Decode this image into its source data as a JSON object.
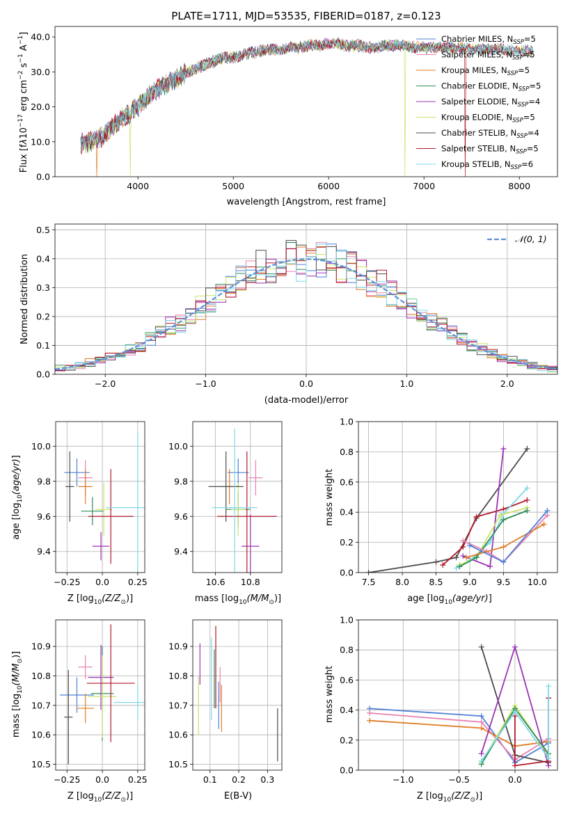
{
  "colors": {
    "Chabrier MILES": "#4f7fd6",
    "Salpeter MILES": "#e880b0",
    "Kroupa MILES": "#e07b23",
    "Chabrier ELODIE": "#2e8b57",
    "Salpeter ELODIE": "#9b32b4",
    "Kroupa ELODIE": "#c9e36a",
    "Chabrier STELIB": "#4a4a4a",
    "Salpeter STELIB": "#b2182b",
    "Kroupa STELIB": "#7fd8e8",
    "gauss": "#5b8fd9"
  },
  "chart_data": [
    {
      "type": "line",
      "title": "PLATE=1711, MJD=53535, FIBERID=0187, z=0.123",
      "xlabel": "wavelength [Angstrom, rest frame]",
      "ylabel": "Flux [f",
      "xlim": [
        3130,
        8400
      ],
      "ylim": [
        0,
        43
      ],
      "xticks": [
        4000,
        5000,
        6000,
        7000,
        8000
      ],
      "yticks": [
        0,
        10,
        20,
        30,
        40
      ],
      "legend_position": "upper right",
      "continuum": {
        "x": [
          3400,
          3500,
          3600,
          3700,
          3800,
          3900,
          4000,
          4100,
          4200,
          4300,
          4400,
          4500,
          4600,
          4700,
          4800,
          4900,
          5000,
          5100,
          5200,
          5300,
          5400,
          5500,
          5600,
          5700,
          5800,
          5900,
          6000,
          6100,
          6200,
          6300,
          6400,
          6500,
          6600,
          6700,
          6800,
          6900,
          7000,
          7100,
          7200,
          7300,
          7400,
          7500,
          7600,
          7700,
          7800,
          7900,
          8000,
          8100,
          8150
        ],
        "y": [
          9.5,
          10,
          11,
          13.5,
          16,
          18,
          20,
          22.5,
          25,
          26.5,
          28,
          29.5,
          31,
          32,
          33,
          34,
          34,
          35,
          35.5,
          36,
          36.5,
          36.5,
          37,
          37,
          37.5,
          37.5,
          38,
          38,
          37.5,
          37.5,
          37,
          37,
          37.5,
          37.5,
          37.5,
          37,
          37,
          37,
          37,
          37,
          37,
          36.5,
          36.5,
          36.5,
          36.5,
          36,
          36,
          36,
          36
        ]
      },
      "series": [
        {
          "name": "Chabrier MILES, N",
          "ssp": "SSP",
          "count": "=5"
        },
        {
          "name": "Salpeter MILES, N",
          "ssp": "SSP",
          "count": "=5"
        },
        {
          "name": "Kroupa MILES, N",
          "ssp": "SSP",
          "count": "=5"
        },
        {
          "name": "Chabrier ELODIE, N",
          "ssp": "SSP",
          "count": "=5"
        },
        {
          "name": "Salpeter ELODIE, N",
          "ssp": "SSP",
          "count": "=4"
        },
        {
          "name": "Kroupa ELODIE, N",
          "ssp": "SSP",
          "count": "=5"
        },
        {
          "name": "Chabrier STELIB, N",
          "ssp": "SSP",
          "count": "=4"
        },
        {
          "name": "Salpeter STELIB, N",
          "ssp": "SSP",
          "count": "=5"
        },
        {
          "name": "Kroupa STELIB, N",
          "ssp": "SSP",
          "count": "=6"
        }
      ],
      "dips": [
        {
          "series": "Kroupa MILES",
          "x": 3570,
          "y": 0
        },
        {
          "series": "Kroupa ELODIE",
          "x": 3920,
          "y": 0
        },
        {
          "series": "Kroupa ELODIE",
          "x": 6800,
          "y": 0
        },
        {
          "series": "Kroupa MILES",
          "x": 7430,
          "y": 0
        },
        {
          "series": "Salpeter STELIB",
          "x": 7435,
          "y": 0
        }
      ]
    },
    {
      "type": "histogram",
      "xlabel": "(data-model)/error",
      "ylabel": "Normed distribution",
      "xlim": [
        -2.5,
        2.5
      ],
      "ylim": [
        0,
        0.52
      ],
      "xticks": [
        -2,
        -1,
        0,
        1,
        2
      ],
      "yticks": [
        0.0,
        0.1,
        0.2,
        0.3,
        0.4,
        0.5
      ],
      "bins": 50,
      "gauss_label": "𝒩(0, 1)",
      "legend_position": "upper right"
    },
    {
      "type": "errorbar",
      "xlabel": "Z [log",
      "ylabel": "age  [log",
      "xlim": [
        -0.33,
        0.3
      ],
      "ylim": [
        9.28,
        10.14
      ],
      "xticks": [
        -0.25,
        0.0,
        0.25
      ],
      "yticks": [
        9.4,
        9.6,
        9.8,
        10.0
      ],
      "points": [
        {
          "series": "Chabrier MILES",
          "x": -0.18,
          "xerr": 0.09,
          "y": 9.85,
          "yerr": 0.08
        },
        {
          "series": "Salpeter MILES",
          "x": -0.12,
          "xerr": 0.05,
          "y": 9.82,
          "yerr": 0.1
        },
        {
          "series": "Kroupa MILES",
          "x": -0.12,
          "xerr": 0.05,
          "y": 9.77,
          "yerr": 0.1
        },
        {
          "series": "Chabrier ELODIE",
          "x": -0.07,
          "xerr": 0.08,
          "y": 9.63,
          "yerr": 0.08
        },
        {
          "series": "Salpeter ELODIE",
          "x": -0.01,
          "xerr": 0.06,
          "y": 9.43,
          "yerr": 0.08
        },
        {
          "series": "Kroupa ELODIE",
          "x": 0.01,
          "xerr": 0.06,
          "y": 9.64,
          "yerr": 0.15
        },
        {
          "series": "Chabrier STELIB",
          "x": -0.23,
          "xerr": 0.03,
          "y": 9.77,
          "yerr": 0.2
        },
        {
          "series": "Salpeter STELIB",
          "x": 0.06,
          "xerr": 0.16,
          "y": 9.6,
          "yerr": 0.27
        },
        {
          "series": "Kroupa STELIB",
          "x": 0.25,
          "xerr": 0.22,
          "y": 9.65,
          "yerr": 0.43
        }
      ]
    },
    {
      "type": "errorbar",
      "xlabel": "mass [log",
      "xlim": [
        10.47,
        10.98
      ],
      "ylim": [
        9.28,
        10.14
      ],
      "xticks": [
        10.6,
        10.8
      ],
      "yticks": [
        9.4,
        9.6,
        9.8,
        10.0
      ],
      "points": [
        {
          "series": "Chabrier MILES",
          "x": 10.73,
          "xerr": 0.06,
          "y": 9.85,
          "yerr": 0.08
        },
        {
          "series": "Salpeter MILES",
          "x": 10.83,
          "xerr": 0.04,
          "y": 9.82,
          "yerr": 0.1
        },
        {
          "series": "Kroupa MILES",
          "x": 10.68,
          "xerr": 0.05,
          "y": 9.77,
          "yerr": 0.1
        },
        {
          "series": "Chabrier ELODIE",
          "x": 10.73,
          "xerr": 0.07,
          "y": 9.64,
          "yerr": 0.1
        },
        {
          "series": "Salpeter ELODIE",
          "x": 10.8,
          "xerr": 0.05,
          "y": 9.43,
          "yerr": 0.18
        },
        {
          "series": "Kroupa ELODIE",
          "x": 10.73,
          "xerr": 0.04,
          "y": 9.64,
          "yerr": 0.15
        },
        {
          "series": "Chabrier STELIB",
          "x": 10.66,
          "xerr": 0.1,
          "y": 9.77,
          "yerr": 0.2
        },
        {
          "series": "Salpeter STELIB",
          "x": 10.78,
          "xerr": 0.17,
          "y": 9.6,
          "yerr": 0.37
        },
        {
          "series": "Kroupa STELIB",
          "x": 10.71,
          "xerr": 0.13,
          "y": 9.65,
          "yerr": 0.45
        }
      ]
    },
    {
      "type": "line",
      "xlabel": "age  [log",
      "ylabel": "mass weight",
      "xlim": [
        7.35,
        10.3
      ],
      "ylim": [
        0,
        1
      ],
      "xticks": [
        7.5,
        8.0,
        8.5,
        9.0,
        9.5,
        10.0
      ],
      "yticks": [
        0.0,
        0.2,
        0.4,
        0.6,
        0.8,
        1.0
      ],
      "series": [
        {
          "name": "Chabrier STELIB",
          "x": [
            7.5,
            8.5,
            8.8,
            9.1,
            9.85
          ],
          "y": [
            0.0,
            0.07,
            0.1,
            0.36,
            0.82
          ]
        },
        {
          "name": "Salpeter STELIB",
          "x": [
            8.6,
            8.9,
            9.1,
            9.5,
            9.85
          ],
          "y": [
            0.05,
            0.17,
            0.37,
            0.42,
            0.48
          ]
        },
        {
          "name": "Salpeter ELODIE",
          "x": [
            8.9,
            9.3,
            9.5
          ],
          "y": [
            0.11,
            0.04,
            0.82
          ]
        },
        {
          "name": "Kroupa STELIB",
          "x": [
            8.8,
            9.0,
            9.3,
            9.5,
            9.85
          ],
          "y": [
            0.03,
            0.08,
            0.2,
            0.39,
            0.56
          ]
        },
        {
          "name": "Kroupa ELODIE",
          "x": [
            8.85,
            9.1,
            9.45,
            9.85
          ],
          "y": [
            0.05,
            0.1,
            0.38,
            0.43
          ]
        },
        {
          "name": "Chabrier ELODIE",
          "x": [
            8.85,
            9.1,
            9.5,
            9.85
          ],
          "y": [
            0.04,
            0.1,
            0.35,
            0.41
          ]
        },
        {
          "name": "Salpeter MILES",
          "x": [
            8.9,
            9.25,
            9.5,
            10.15
          ],
          "y": [
            0.21,
            0.14,
            0.07,
            0.38
          ]
        },
        {
          "name": "Kroupa MILES",
          "x": [
            8.95,
            9.5,
            10.1
          ],
          "y": [
            0.1,
            0.17,
            0.32
          ]
        },
        {
          "name": "Chabrier MILES",
          "x": [
            9.0,
            9.5,
            10.15
          ],
          "y": [
            0.18,
            0.07,
            0.41
          ]
        }
      ]
    },
    {
      "type": "errorbar",
      "xlabel": "Z [log",
      "ylabel": "mass [log",
      "xlim": [
        -0.33,
        0.3
      ],
      "ylim": [
        10.48,
        10.99
      ],
      "xticks": [
        -0.25,
        0.0,
        0.25
      ],
      "yticks": [
        10.5,
        10.6,
        10.7,
        10.8,
        10.9
      ],
      "points": [
        {
          "series": "Chabrier MILES",
          "x": -0.18,
          "xerr": 0.12,
          "y": 10.735,
          "yerr": 0.06
        },
        {
          "series": "Salpeter MILES",
          "x": -0.12,
          "xerr": 0.05,
          "y": 10.83,
          "yerr": 0.04
        },
        {
          "series": "Kroupa MILES",
          "x": -0.12,
          "xerr": 0.06,
          "y": 10.69,
          "yerr": 0.05
        },
        {
          "series": "Chabrier ELODIE",
          "x": 0.0,
          "xerr": 0.08,
          "y": 10.74,
          "yerr": 0.16
        },
        {
          "series": "Salpeter ELODIE",
          "x": -0.01,
          "xerr": 0.09,
          "y": 10.795,
          "yerr": 0.11
        },
        {
          "series": "Kroupa ELODIE",
          "x": 0.0,
          "xerr": 0.1,
          "y": 10.73,
          "yerr": 0.14
        },
        {
          "series": "Chabrier STELIB",
          "x": -0.24,
          "xerr": 0.03,
          "y": 10.66,
          "yerr": 0.16
        },
        {
          "series": "Salpeter STELIB",
          "x": 0.06,
          "xerr": 0.17,
          "y": 10.775,
          "yerr": 0.2
        },
        {
          "series": "Kroupa STELIB",
          "x": 0.25,
          "xerr": 0.17,
          "y": 10.71,
          "yerr": 0.06
        }
      ]
    },
    {
      "type": "errorbar",
      "xlabel": "E(B-V)",
      "xlim": [
        0.04,
        0.35
      ],
      "ylim": [
        10.48,
        10.99
      ],
      "xticks": [
        0.1,
        0.2,
        0.3
      ],
      "yticks": [
        10.5,
        10.6,
        10.7,
        10.8,
        10.9
      ],
      "points": [
        {
          "series": "Chabrier MILES",
          "x": 0.13,
          "xerr": 0.0,
          "y": 10.7,
          "yerr": 0.08
        },
        {
          "series": "Salpeter MILES",
          "x": 0.135,
          "xerr": 0.0,
          "y": 10.77,
          "yerr": 0.06
        },
        {
          "series": "Kroupa MILES",
          "x": 0.14,
          "xerr": 0.0,
          "y": 10.69,
          "yerr": 0.08
        },
        {
          "series": "Chabrier ELODIE",
          "x": 0.115,
          "xerr": 0.0,
          "y": 10.79,
          "yerr": 0.1
        },
        {
          "series": "Salpeter ELODIE",
          "x": 0.065,
          "xerr": 0.0,
          "y": 10.84,
          "yerr": 0.07
        },
        {
          "series": "Kroupa ELODIE",
          "x": 0.06,
          "xerr": 0.0,
          "y": 10.7,
          "yerr": 0.1
        },
        {
          "series": "Chabrier STELIB",
          "x": 0.335,
          "xerr": 0.0,
          "y": 10.6,
          "yerr": 0.09
        },
        {
          "series": "Salpeter STELIB",
          "x": 0.12,
          "xerr": 0.0,
          "y": 10.83,
          "yerr": 0.14
        },
        {
          "series": "Kroupa STELIB",
          "x": 0.105,
          "xerr": 0.0,
          "y": 10.79,
          "yerr": 0.14
        }
      ]
    },
    {
      "type": "line",
      "xlabel": "Z [log",
      "ylabel": "mass weight",
      "xlim": [
        -1.4,
        0.38
      ],
      "ylim": [
        0,
        1
      ],
      "xticks": [
        -1.0,
        -0.5,
        0.0
      ],
      "yticks": [
        0.0,
        0.2,
        0.4,
        0.6,
        0.8,
        1.0
      ],
      "series": [
        {
          "name": "Chabrier MILES",
          "x": [
            -1.3,
            -0.3,
            0.0,
            0.3
          ],
          "y": [
            0.41,
            0.36,
            0.05,
            0.18
          ]
        },
        {
          "name": "Salpeter MILES",
          "x": [
            -1.3,
            -0.3,
            0.0,
            0.3
          ],
          "y": [
            0.38,
            0.32,
            0.07,
            0.21
          ]
        },
        {
          "name": "Kroupa MILES",
          "x": [
            -1.3,
            -0.3,
            0.0,
            0.3
          ],
          "y": [
            0.33,
            0.28,
            0.16,
            0.19
          ]
        },
        {
          "name": "Chabrier STELIB",
          "x": [
            -0.3,
            0.0,
            0.3
          ],
          "y": [
            0.82,
            0.1,
            0.05
          ]
        },
        {
          "name": "Salpeter ELODIE",
          "x": [
            -0.3,
            0.0,
            0.3
          ],
          "y": [
            0.11,
            0.82,
            0.03
          ]
        },
        {
          "name": "Kroupa ELODIE",
          "x": [
            -0.3,
            0.0,
            0.3
          ],
          "y": [
            0.05,
            0.43,
            0.1
          ]
        },
        {
          "name": "Chabrier ELODIE",
          "x": [
            -0.3,
            0.0,
            0.3
          ],
          "y": [
            0.04,
            0.41,
            0.11
          ]
        },
        {
          "name": "Salpeter STELIB",
          "x": [
            0.0,
            0.0,
            0.3,
            0.3
          ],
          "y": [
            0.36,
            0.03,
            0.06,
            0.48
          ]
        },
        {
          "name": "Kroupa STELIB",
          "x": [
            -0.3,
            0.0,
            0.3,
            0.3
          ],
          "y": [
            0.06,
            0.39,
            0.08,
            0.56
          ]
        }
      ]
    }
  ],
  "labels": {
    "flux_unit_part": "λ",
    "flux_tail": "10",
    "flux_exp1": "−17",
    "flux_rest": " erg cm",
    "flux_exp2": "−2",
    "flux_s": " s",
    "flux_exp3": "−1",
    "flux_A": " A",
    "flux_exp4": "−1",
    "flux_close": "]",
    "log_sub": "10",
    "age_unit": "(age/yr)",
    "Z_unit": "(Z/Z",
    "sun": "⊙",
    "paren_close": ")]",
    "mass_unit": "(M/M"
  }
}
